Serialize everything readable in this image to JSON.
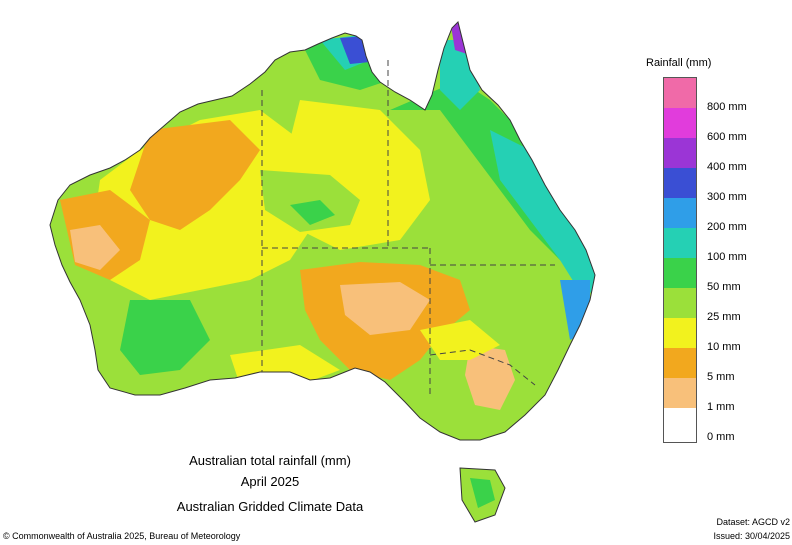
{
  "titles": {
    "line1": "Australian total rainfall (mm)",
    "line2": "April 2025",
    "line3": "Australian Gridded Climate Data"
  },
  "legend": {
    "title": "Rainfall (mm)",
    "bins": [
      {
        "label": "",
        "color": "#f06aa8"
      },
      {
        "label": "800 mm",
        "color": "#e13cdc"
      },
      {
        "label": "600 mm",
        "color": "#9b35d6"
      },
      {
        "label": "400 mm",
        "color": "#3a4fd4"
      },
      {
        "label": "300 mm",
        "color": "#2f9ee8"
      },
      {
        "label": "200 mm",
        "color": "#25d0b4"
      },
      {
        "label": "100 mm",
        "color": "#3ad24a"
      },
      {
        "label": "50 mm",
        "color": "#9be03a"
      },
      {
        "label": "25 mm",
        "color": "#f2f21e"
      },
      {
        "label": "10 mm",
        "color": "#f2a81e"
      },
      {
        "label": "5 mm",
        "color": "#f8c07a"
      },
      {
        "label": "1 mm",
        "color": "#ffffff"
      }
    ],
    "bottom_label": "0 mm"
  },
  "footer": {
    "copyright": "© Commonwealth of Australia 2025, Bureau of Meteorology",
    "dataset": "Dataset: AGCD v2",
    "issued": "Issued: 30/04/2025"
  },
  "colors": {
    "pink": "#f06aa8",
    "magenta": "#e13cdc",
    "purple": "#9b35d6",
    "blue": "#3a4fd4",
    "lightblue": "#2f9ee8",
    "teal": "#25d0b4",
    "green": "#3ad24a",
    "lightgreen": "#9be03a",
    "yellow": "#f2f21e",
    "orange": "#f2a81e",
    "peach": "#f8c07a",
    "white": "#ffffff"
  }
}
